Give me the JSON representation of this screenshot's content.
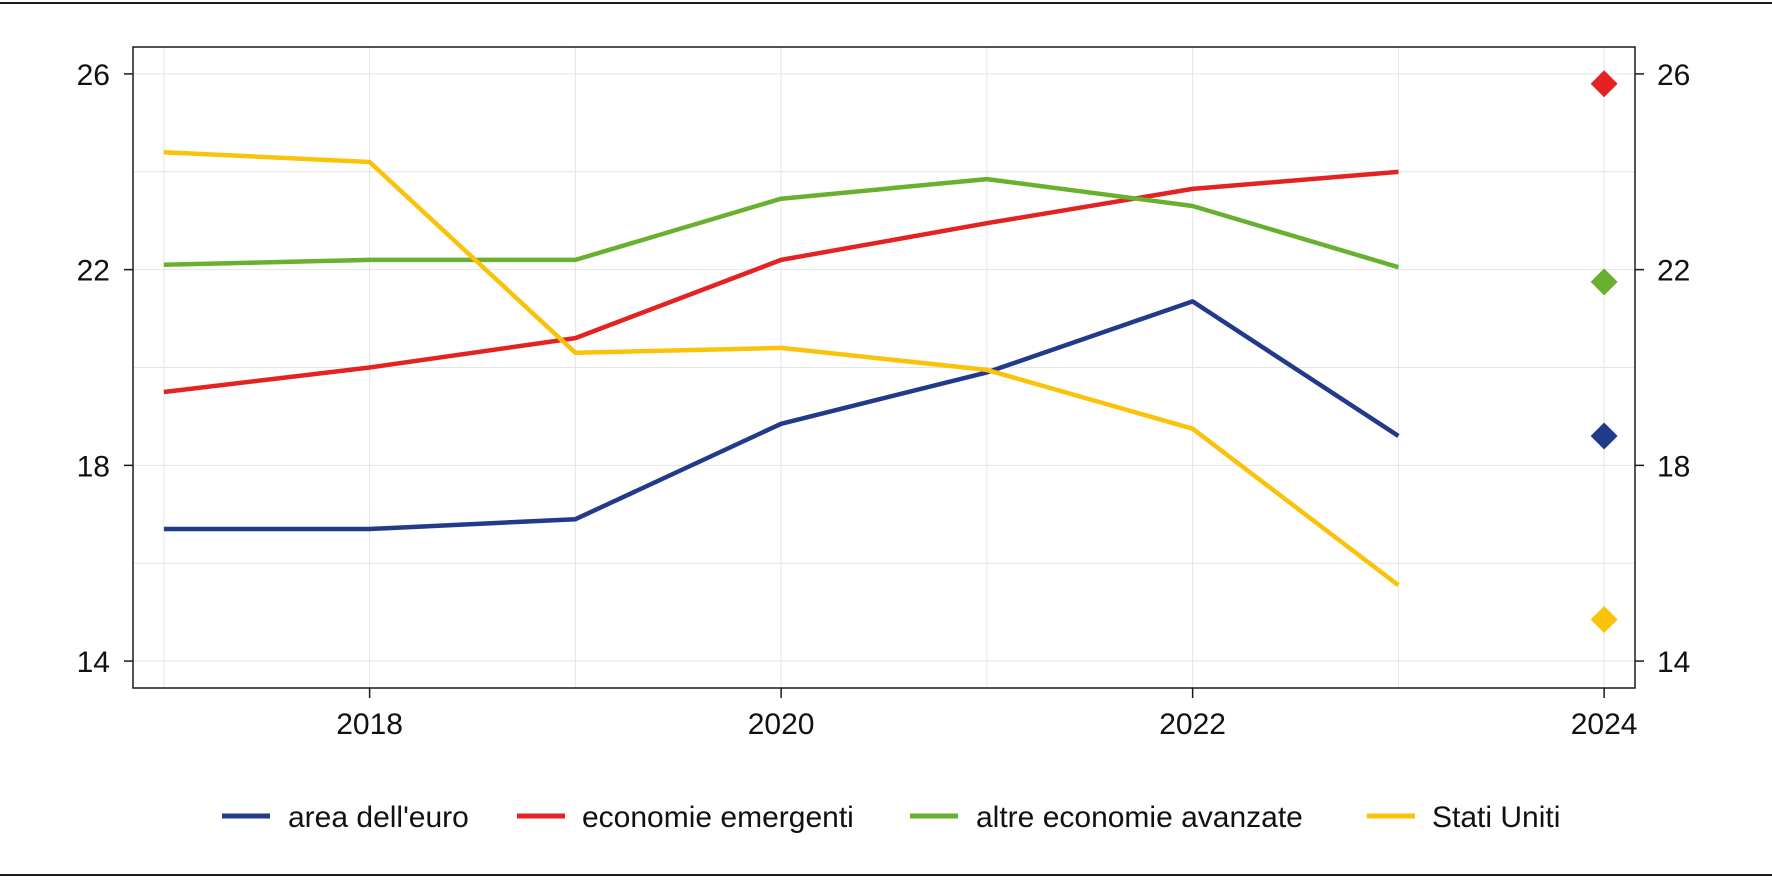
{
  "chart_data": {
    "type": "line",
    "x": [
      2017,
      2018,
      2019,
      2020,
      2021,
      2022,
      2023
    ],
    "series": [
      {
        "name": "area dell'euro",
        "color": "#223a8a",
        "values": [
          16.7,
          16.7,
          16.9,
          18.85,
          19.9,
          21.35,
          18.6
        ],
        "marker_2024": 18.6
      },
      {
        "name": "economie emergenti",
        "color": "#e32322",
        "values": [
          19.5,
          20.0,
          20.6,
          22.2,
          22.95,
          23.65,
          24.0
        ],
        "marker_2024": 25.8
      },
      {
        "name": "altre economie avanzate",
        "color": "#6ab02f",
        "values": [
          22.1,
          22.2,
          22.2,
          23.45,
          23.85,
          23.3,
          22.05
        ],
        "marker_2024": 21.75
      },
      {
        "name": "Stati Uniti",
        "color": "#fbc20a",
        "values": [
          24.4,
          24.2,
          20.3,
          20.4,
          19.95,
          18.75,
          15.55
        ],
        "marker_2024": 14.85
      }
    ],
    "xticks": [
      "2018",
      "2020",
      "2022",
      "2024"
    ],
    "yticks_left": [
      "14",
      "18",
      "22",
      "26"
    ],
    "yticks_right": [
      "14",
      "18",
      "22",
      "26"
    ],
    "xlim": [
      2016.85,
      2024.15
    ],
    "ylim": [
      13.45,
      26.55
    ],
    "grid": true,
    "legend_position": "bottom"
  }
}
